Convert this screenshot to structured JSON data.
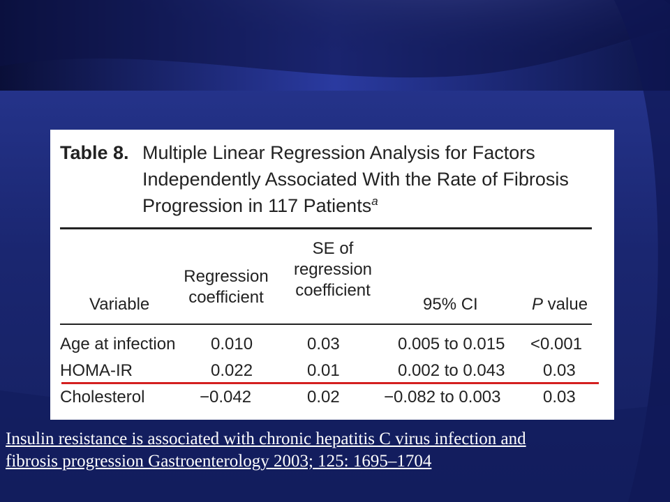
{
  "slide": {
    "table": {
      "label": "Table 8.",
      "title_line1": "Multiple Linear Regression Analysis for Factors",
      "title_line2": "Independently Associated With the Rate of Fibrosis",
      "title_line3": "Progression in 117 Patients",
      "title_footnote_mark": "a",
      "headers": {
        "variable": "Variable",
        "coef_line1": "Regression",
        "coef_line2": "coefficient",
        "se_line1": "SE of",
        "se_line2": "regression",
        "se_line3": "coefficient",
        "ci": "95% CI",
        "p_italic": "P",
        "p_rest": " value"
      },
      "rows": [
        {
          "variable": "Age at infection",
          "coef": "0.010",
          "se": "0.03",
          "ci": "0.005 to 0.015",
          "p": "<0.001"
        },
        {
          "variable": "HOMA-IR",
          "coef": "0.022",
          "se": "0.01",
          "ci": "0.002 to 0.043",
          "p": "0.03"
        },
        {
          "variable": "Cholesterol",
          "coef": "−0.042",
          "se": "0.02",
          "ci": "−0.082 to 0.003",
          "p": "0.03"
        }
      ]
    },
    "caption_line1": "Insulin resistance is associated with chronic hepatitis C virus infection and",
    "caption_line2": "fibrosis progression Gastroenterology 2003; 125: 1695–1704",
    "colors": {
      "background": "#1c2a78",
      "highlight_line": "#d42020"
    }
  }
}
